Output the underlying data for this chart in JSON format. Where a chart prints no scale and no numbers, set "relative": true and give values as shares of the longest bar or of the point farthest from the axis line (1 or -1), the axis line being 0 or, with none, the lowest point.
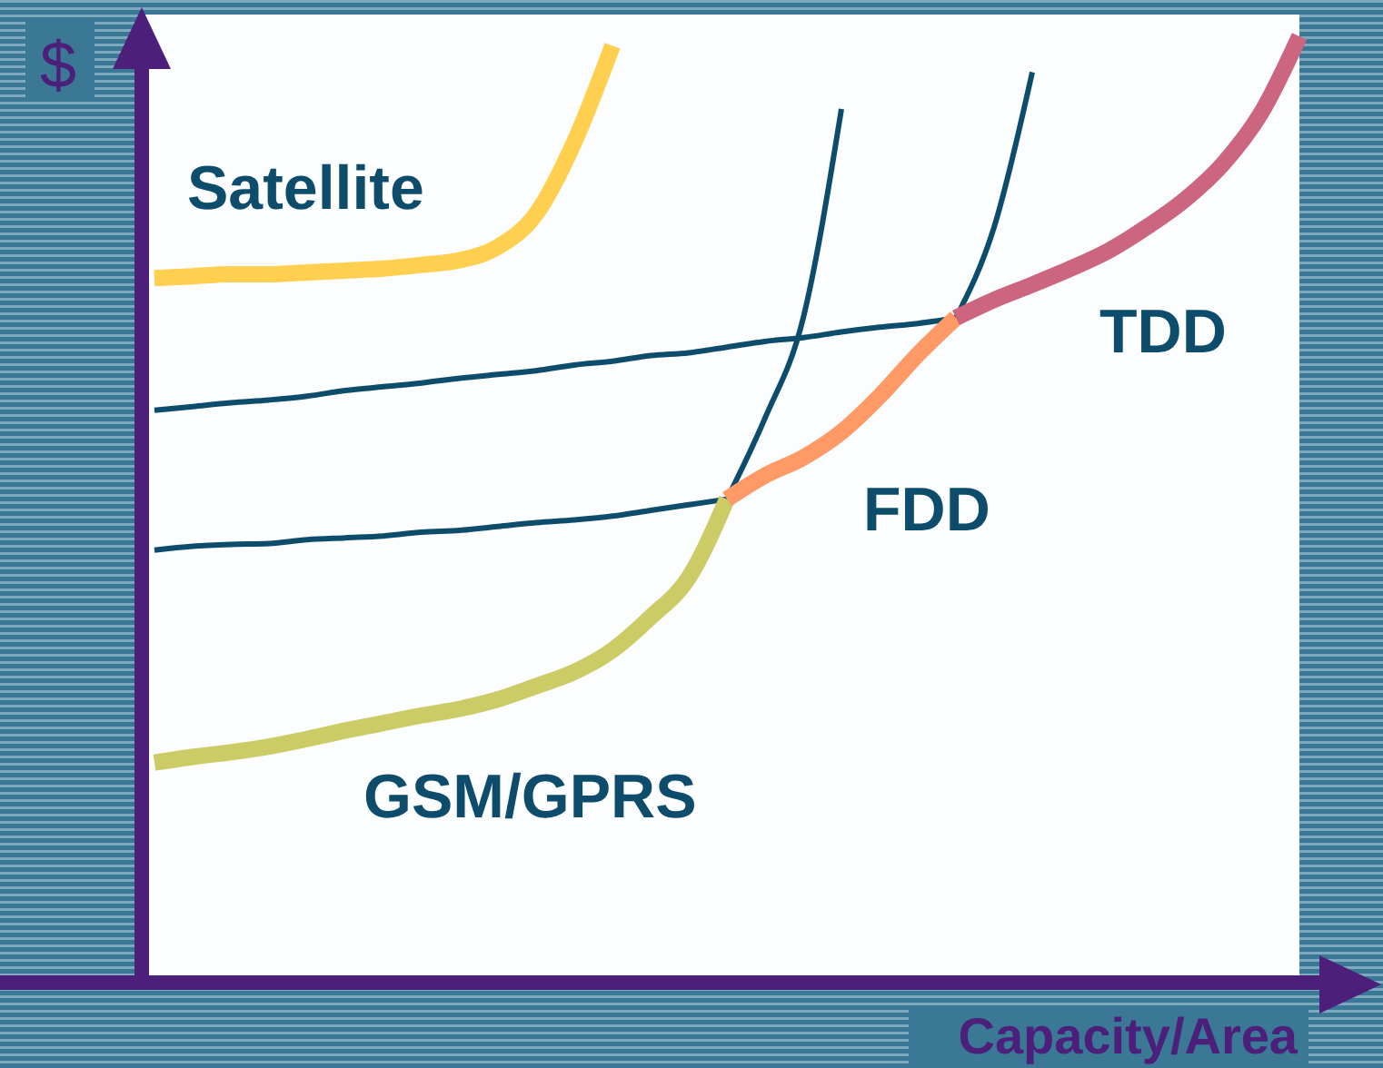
{
  "chart_data": {
    "type": "line",
    "relative": true,
    "legend": false,
    "xlabel": "Capacity/Area",
    "ylabel": "$",
    "categories": [
      null,
      null,
      null,
      null,
      null,
      null,
      null,
      null,
      null,
      null,
      null,
      null,
      null,
      null,
      null,
      null,
      null,
      null,
      null,
      null,
      null,
      null,
      null,
      null,
      null,
      null,
      null,
      null,
      null,
      null,
      null
    ],
    "series": [
      {
        "color": "#0d4d6b",
        "values": [
          null,
          null,
          null,
          null,
          null,
          null,
          null,
          null,
          null,
          null,
          null,
          null,
          null,
          null,
          null,
          0.51,
          0.596,
          0.702,
          0.923,
          null,
          null,
          null,
          null,
          null,
          null,
          null,
          null,
          null,
          null,
          null,
          null
        ]
      },
      {
        "color": "#0d4d6b",
        "values": [
          0.456,
          0.46,
          0.462,
          0.463,
          0.467,
          0.469,
          0.471,
          0.475,
          0.477,
          0.481,
          0.485,
          0.488,
          0.492,
          0.498,
          0.504,
          0.51,
          null,
          null,
          null,
          null,
          null,
          null,
          null,
          null,
          null,
          null,
          null,
          null,
          null,
          null,
          null
        ]
      },
      {
        "color": "#0d4d6b",
        "values": [
          null,
          null,
          null,
          null,
          null,
          null,
          null,
          null,
          null,
          null,
          null,
          null,
          null,
          null,
          null,
          null,
          null,
          null,
          null,
          null,
          null,
          0.702,
          0.798,
          0.962,
          null,
          null,
          null,
          null,
          null,
          null,
          null
        ]
      },
      {
        "color": "#0d4d6b",
        "values": [
          0.604,
          0.608,
          0.612,
          0.615,
          0.619,
          0.625,
          0.629,
          0.633,
          0.638,
          0.642,
          0.646,
          0.652,
          0.656,
          0.662,
          0.665,
          0.671,
          0.677,
          0.681,
          0.687,
          0.692,
          0.696,
          0.702,
          null,
          null,
          null,
          null,
          null,
          null,
          null,
          null,
          null
        ]
      },
      {
        "name": "Satellite",
        "color": "#ffd04f",
        "values": [
          0.744,
          0.746,
          0.748,
          0.748,
          0.75,
          0.752,
          0.754,
          0.758,
          0.763,
          0.777,
          0.812,
          0.888,
          0.99,
          null,
          null,
          null,
          null,
          null,
          null,
          null,
          null,
          null,
          null,
          null,
          null,
          null,
          null,
          null,
          null,
          null,
          null
        ]
      },
      {
        "name": "GSM/GPRS",
        "color": "#cccc66",
        "values": [
          0.231,
          0.237,
          0.242,
          0.248,
          0.256,
          0.265,
          0.273,
          0.281,
          0.288,
          0.298,
          0.312,
          0.327,
          0.35,
          0.385,
          0.427,
          0.51,
          null,
          null,
          null,
          null,
          null,
          null,
          null,
          null,
          null,
          null,
          null,
          null,
          null,
          null,
          null
        ]
      },
      {
        "name": "FDD",
        "color": "#ff9966",
        "values": [
          null,
          null,
          null,
          null,
          null,
          null,
          null,
          null,
          null,
          null,
          null,
          null,
          null,
          null,
          null,
          0.51,
          0.535,
          0.554,
          0.581,
          0.619,
          0.663,
          0.702,
          null,
          null,
          null,
          null,
          null,
          null,
          null,
          null,
          null
        ]
      },
      {
        "name": "TDD",
        "color": "#cc6680",
        "values": [
          null,
          null,
          null,
          null,
          null,
          null,
          null,
          null,
          null,
          null,
          null,
          null,
          null,
          null,
          null,
          null,
          null,
          null,
          null,
          null,
          null,
          0.702,
          0.721,
          0.737,
          0.754,
          0.773,
          0.798,
          0.827,
          0.865,
          0.919,
          1
        ]
      }
    ]
  }
}
